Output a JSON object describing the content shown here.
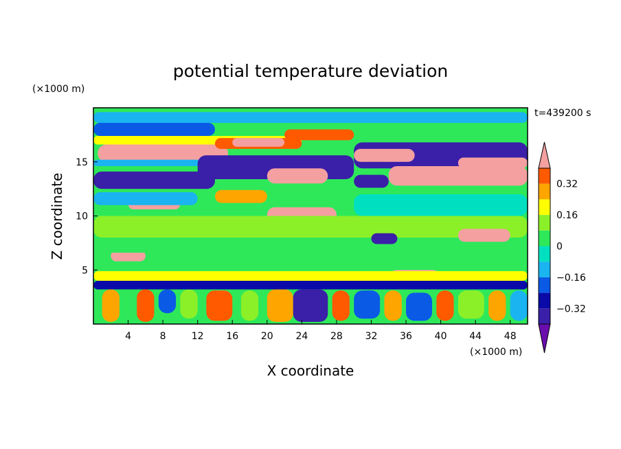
{
  "chart_data": {
    "type": "heatmap",
    "title": "potential temperature deviation",
    "xlabel": "X coordinate",
    "ylabel": "Z coordinate",
    "x_unit": "(×1000 m)",
    "y_unit": "(×1000 m)",
    "time_label": "t=439200 s",
    "xlim": [
      0,
      50
    ],
    "ylim": [
      0,
      20
    ],
    "x_ticks": [
      4,
      8,
      12,
      16,
      20,
      24,
      28,
      32,
      36,
      40,
      44,
      48
    ],
    "y_ticks": [
      5,
      10,
      15
    ],
    "colorbar": {
      "levels": [
        -0.4,
        -0.32,
        -0.24,
        -0.16,
        -0.08,
        0,
        0.08,
        0.16,
        0.24,
        0.32,
        0.4
      ],
      "labeled_ticks": [
        "0.32",
        "0.16",
        "0",
        "−0.16",
        "−0.32"
      ],
      "colors": [
        "#6a0dad",
        "#3a1fa8",
        "#0a0aa8",
        "#0a5ae6",
        "#1ab4f0",
        "#00e0c0",
        "#2ee85a",
        "#8cf028",
        "#ffff00",
        "#ffa500",
        "#ff5a00",
        "#ff2020",
        "#f4a0a0"
      ],
      "under_color": "#6a0dad",
      "over_color": "#f4a0a0"
    },
    "background_color": "#2ee85a",
    "features": [
      {
        "x": 0,
        "y": 18.6,
        "w": 50,
        "h": 1.0,
        "value": -0.1
      },
      {
        "x": 0,
        "y": 17.4,
        "w": 14,
        "h": 1.2,
        "value": -0.2
      },
      {
        "x": 0,
        "y": 16.6,
        "w": 24,
        "h": 0.8,
        "value": 0.2
      },
      {
        "x": 0.5,
        "y": 15.0,
        "w": 15,
        "h": 1.6,
        "value": 0.45
      },
      {
        "x": 14,
        "y": 16.2,
        "w": 10,
        "h": 1.0,
        "value": 0.35
      },
      {
        "x": 16,
        "y": 16.4,
        "w": 6,
        "h": 0.8,
        "value": 0.45
      },
      {
        "x": 22,
        "y": 17.0,
        "w": 8,
        "h": 1.0,
        "value": 0.35
      },
      {
        "x": 0,
        "y": 14.6,
        "w": 20,
        "h": 0.6,
        "value": -0.15
      },
      {
        "x": 12,
        "y": 13.4,
        "w": 18,
        "h": 2.2,
        "value": -0.36
      },
      {
        "x": 0,
        "y": 12.5,
        "w": 14,
        "h": 1.6,
        "value": -0.4
      },
      {
        "x": 30,
        "y": 14.4,
        "w": 20,
        "h": 2.4,
        "value": -0.36
      },
      {
        "x": 30,
        "y": 15.0,
        "w": 7,
        "h": 1.2,
        "value": 0.42
      },
      {
        "x": 34,
        "y": 12.8,
        "w": 16,
        "h": 1.8,
        "value": 0.42
      },
      {
        "x": 42,
        "y": 14.4,
        "w": 8,
        "h": 1.0,
        "value": 0.42
      },
      {
        "x": 20,
        "y": 13.0,
        "w": 7,
        "h": 1.4,
        "value": 0.42
      },
      {
        "x": 30,
        "y": 12.6,
        "w": 4,
        "h": 1.2,
        "value": -0.4
      },
      {
        "x": 14,
        "y": 11.2,
        "w": 6,
        "h": 1.2,
        "value": 0.3
      },
      {
        "x": 20,
        "y": 9.4,
        "w": 8,
        "h": 1.4,
        "value": 0.42
      },
      {
        "x": 26,
        "y": 8.6,
        "w": 4,
        "h": 1.0,
        "value": 0.35
      },
      {
        "x": 4,
        "y": 10.6,
        "w": 6,
        "h": 1.0,
        "value": 0.42
      },
      {
        "x": 0,
        "y": 11.0,
        "w": 12,
        "h": 1.2,
        "value": -0.1
      },
      {
        "x": 30,
        "y": 10.0,
        "w": 20,
        "h": 2.0,
        "value": -0.05
      },
      {
        "x": 0,
        "y": 8.0,
        "w": 50,
        "h": 2.0,
        "value": 0.1
      },
      {
        "x": 42,
        "y": 7.6,
        "w": 6,
        "h": 1.2,
        "value": 0.42
      },
      {
        "x": 2,
        "y": 5.8,
        "w": 4,
        "h": 1.0,
        "value": 0.42
      },
      {
        "x": 0,
        "y": 6.6,
        "w": 20,
        "h": 1.0,
        "value": 0.02
      },
      {
        "x": 32,
        "y": 7.4,
        "w": 3,
        "h": 1.0,
        "value": -0.36
      },
      {
        "x": 34,
        "y": 3.0,
        "w": 6,
        "h": 2.0,
        "value": 0.42
      },
      {
        "x": 0,
        "y": 3.2,
        "w": 50,
        "h": 0.8,
        "value": -0.28
      },
      {
        "x": 0,
        "y": 4.0,
        "w": 50,
        "h": 0.9,
        "value": 0.2
      },
      {
        "x": 0,
        "y": 0,
        "w": 50,
        "h": 3.2,
        "value": 0.06
      },
      {
        "x": 1,
        "y": 0.2,
        "w": 2,
        "h": 3.0,
        "value": 0.3
      },
      {
        "x": 5,
        "y": 0.2,
        "w": 2,
        "h": 3.0,
        "value": 0.32
      },
      {
        "x": 7.5,
        "y": 1.0,
        "w": 2,
        "h": 2.2,
        "value": -0.2
      },
      {
        "x": 10,
        "y": 0.5,
        "w": 2,
        "h": 2.7,
        "value": 0.12
      },
      {
        "x": 13,
        "y": 0.3,
        "w": 3,
        "h": 2.8,
        "value": 0.32
      },
      {
        "x": 17,
        "y": 0.3,
        "w": 2,
        "h": 2.8,
        "value": 0.1
      },
      {
        "x": 20,
        "y": 0.2,
        "w": 3,
        "h": 3.0,
        "value": 0.3
      },
      {
        "x": 23,
        "y": 0.2,
        "w": 4,
        "h": 3.0,
        "value": -0.36
      },
      {
        "x": 27.5,
        "y": 0.3,
        "w": 2,
        "h": 2.8,
        "value": 0.32
      },
      {
        "x": 30,
        "y": 0.5,
        "w": 3,
        "h": 2.6,
        "value": -0.2
      },
      {
        "x": 33.5,
        "y": 0.3,
        "w": 2,
        "h": 2.8,
        "value": 0.3
      },
      {
        "x": 36,
        "y": 0.3,
        "w": 3,
        "h": 2.6,
        "value": -0.18
      },
      {
        "x": 39.5,
        "y": 0.3,
        "w": 2,
        "h": 2.8,
        "value": 0.32
      },
      {
        "x": 42,
        "y": 0.5,
        "w": 3,
        "h": 2.6,
        "value": 0.1
      },
      {
        "x": 45.5,
        "y": 0.3,
        "w": 2,
        "h": 2.8,
        "value": 0.3
      },
      {
        "x": 48,
        "y": 0.3,
        "w": 2,
        "h": 2.8,
        "value": -0.15
      }
    ]
  }
}
